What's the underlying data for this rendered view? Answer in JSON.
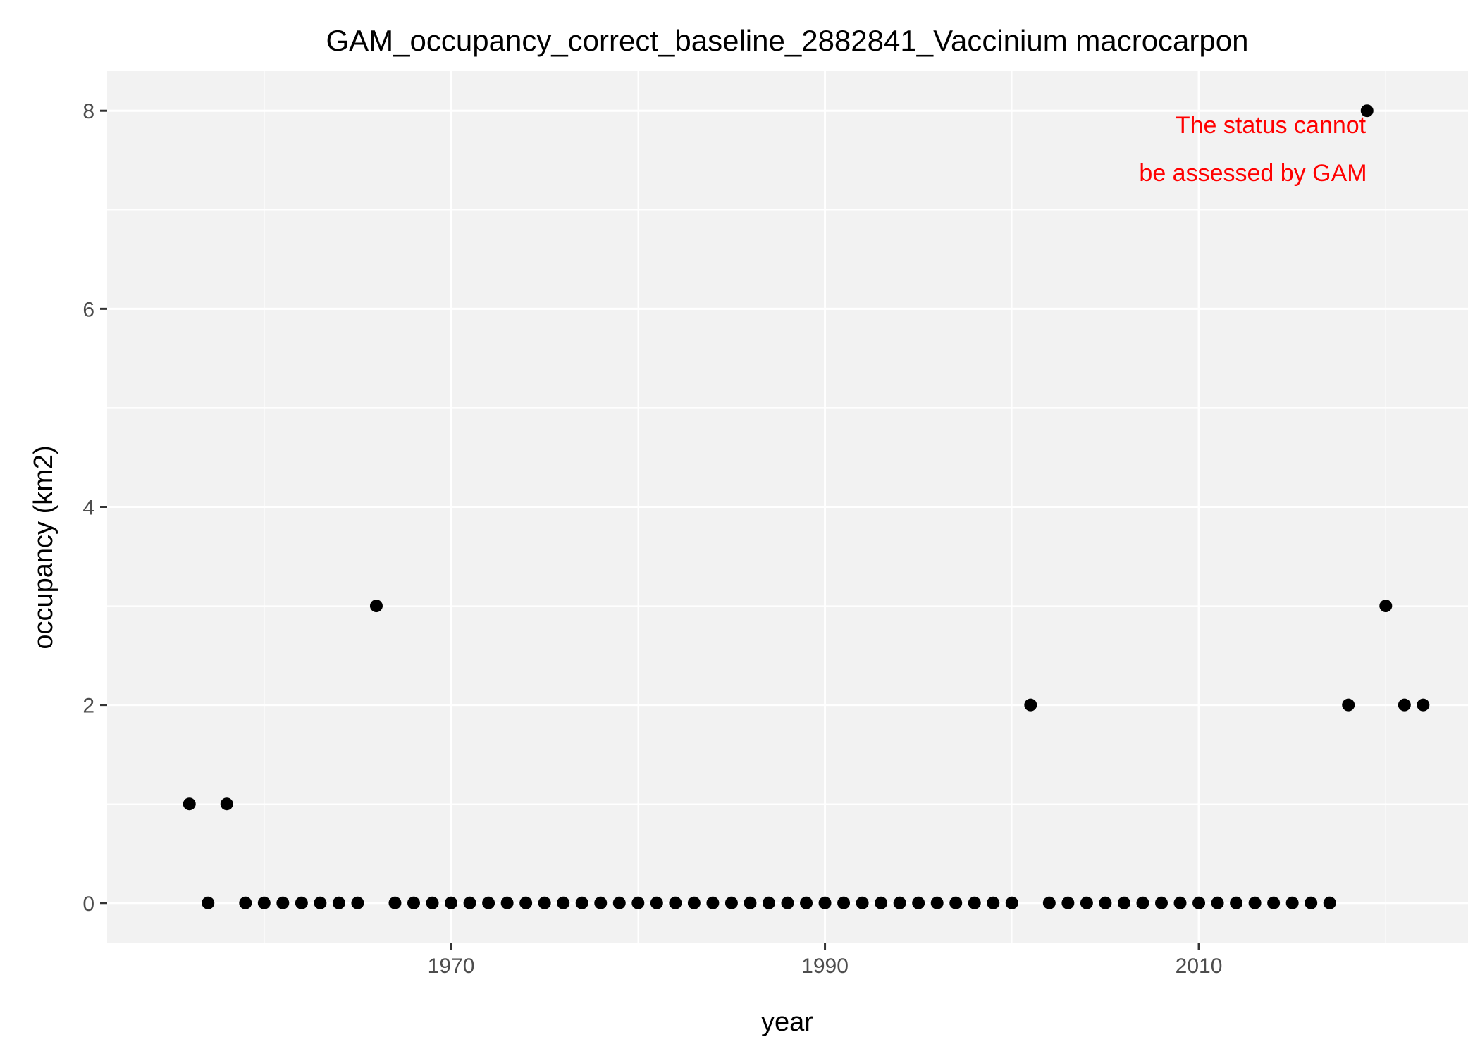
{
  "chart_data": {
    "type": "scatter",
    "title": "GAM_occupancy_correct_baseline_2882841_Vaccinium macrocarpon",
    "xlabel": "year",
    "ylabel": "occupancy (km2)",
    "xlim": [
      1951.6,
      2024.4
    ],
    "ylim": [
      -0.4,
      8.4
    ],
    "x_ticks": [
      1970,
      1990,
      2010
    ],
    "x_tick_labels": [
      "1970",
      "1990",
      "2010"
    ],
    "x_minor_ticks": [
      1960,
      1980,
      2000,
      2020
    ],
    "y_ticks": [
      0,
      2,
      4,
      6,
      8
    ],
    "y_tick_labels": [
      "0",
      "2",
      "4",
      "6",
      "8"
    ],
    "y_minor_ticks": [
      1,
      3,
      5,
      7
    ],
    "grid": true,
    "annotation": {
      "lines": [
        "The status cannot",
        "be assessed by GAM"
      ],
      "color": "#ff0000"
    },
    "panel_background": "#f2f2f2",
    "point_color": "#000000",
    "series": [
      {
        "x": [
          1956,
          1957,
          1958,
          1959,
          1960,
          1961,
          1962,
          1963,
          1964,
          1965,
          1966,
          1967,
          1968,
          1969,
          1970,
          1971,
          1972,
          1973,
          1974,
          1975,
          1976,
          1977,
          1978,
          1979,
          1980,
          1981,
          1982,
          1983,
          1984,
          1985,
          1986,
          1987,
          1988,
          1989,
          1990,
          1991,
          1992,
          1993,
          1994,
          1995,
          1996,
          1997,
          1998,
          1999,
          2000,
          2001,
          2002,
          2003,
          2004,
          2005,
          2006,
          2007,
          2008,
          2009,
          2010,
          2011,
          2012,
          2013,
          2014,
          2015,
          2016,
          2017,
          2018,
          2019,
          2020,
          2021,
          2022
        ],
        "y": [
          1,
          0,
          1,
          0,
          0,
          0,
          0,
          0,
          0,
          0,
          3,
          0,
          0,
          0,
          0,
          0,
          0,
          0,
          0,
          0,
          0,
          0,
          0,
          0,
          0,
          0,
          0,
          0,
          0,
          0,
          0,
          0,
          0,
          0,
          0,
          0,
          0,
          0,
          0,
          0,
          0,
          0,
          0,
          0,
          0,
          2,
          0,
          0,
          0,
          0,
          0,
          0,
          0,
          0,
          0,
          0,
          0,
          0,
          0,
          0,
          0,
          0,
          2,
          8,
          3,
          2,
          2
        ]
      }
    ]
  }
}
